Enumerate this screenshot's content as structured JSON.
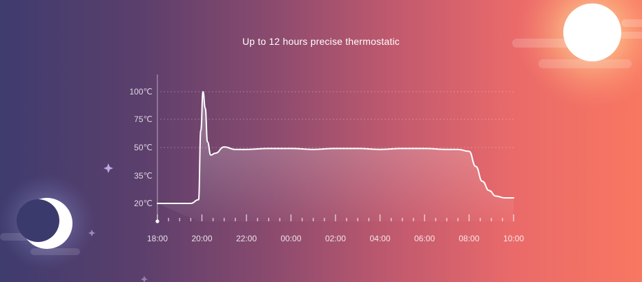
{
  "header": {
    "title": "Up to 12 hours precise thermostatic"
  },
  "colors": {
    "background_left": "#3f3c6e",
    "background_right": "#f87761",
    "line": "#ffffff",
    "moon": "#3b3a6d",
    "sun": "#ffffff"
  },
  "icons": [
    "moon-icon",
    "sun-icon",
    "sparkle-icon",
    "cloud-icon"
  ],
  "chart_data": {
    "type": "line",
    "title": "",
    "xlabel": "",
    "ylabel": "",
    "x_ticks": [
      "18:00",
      "20:00",
      "22:00",
      "00:00",
      "02:00",
      "04:00",
      "06:00",
      "08:00",
      "10:00"
    ],
    "y_ticks": [
      "100℃",
      "75℃",
      "50℃",
      "35℃",
      "20℃"
    ],
    "y_tick_values": [
      100,
      75,
      50,
      35,
      20
    ],
    "xlim": [
      0,
      16
    ],
    "grid": true,
    "legend": "none",
    "series": [
      {
        "x": [
          0,
          1.5,
          1.85,
          1.95,
          2.05,
          2.15,
          2.25,
          2.4,
          2.6,
          3.0,
          3.5,
          4.0,
          5.0,
          6.0,
          7.0,
          8.0,
          9.0,
          10.0,
          11.0,
          12.0,
          13.0,
          13.5,
          14.0,
          14.3,
          14.6,
          14.9,
          15.2,
          15.6,
          16.0
        ],
        "y": [
          20,
          20,
          22,
          65,
          100,
          85,
          55,
          46,
          47,
          50.5,
          49,
          49,
          49.5,
          49.5,
          49,
          49.5,
          49.5,
          49,
          49.5,
          49.5,
          49,
          49,
          48,
          40,
          32,
          27,
          24,
          23,
          23
        ]
      }
    ]
  }
}
